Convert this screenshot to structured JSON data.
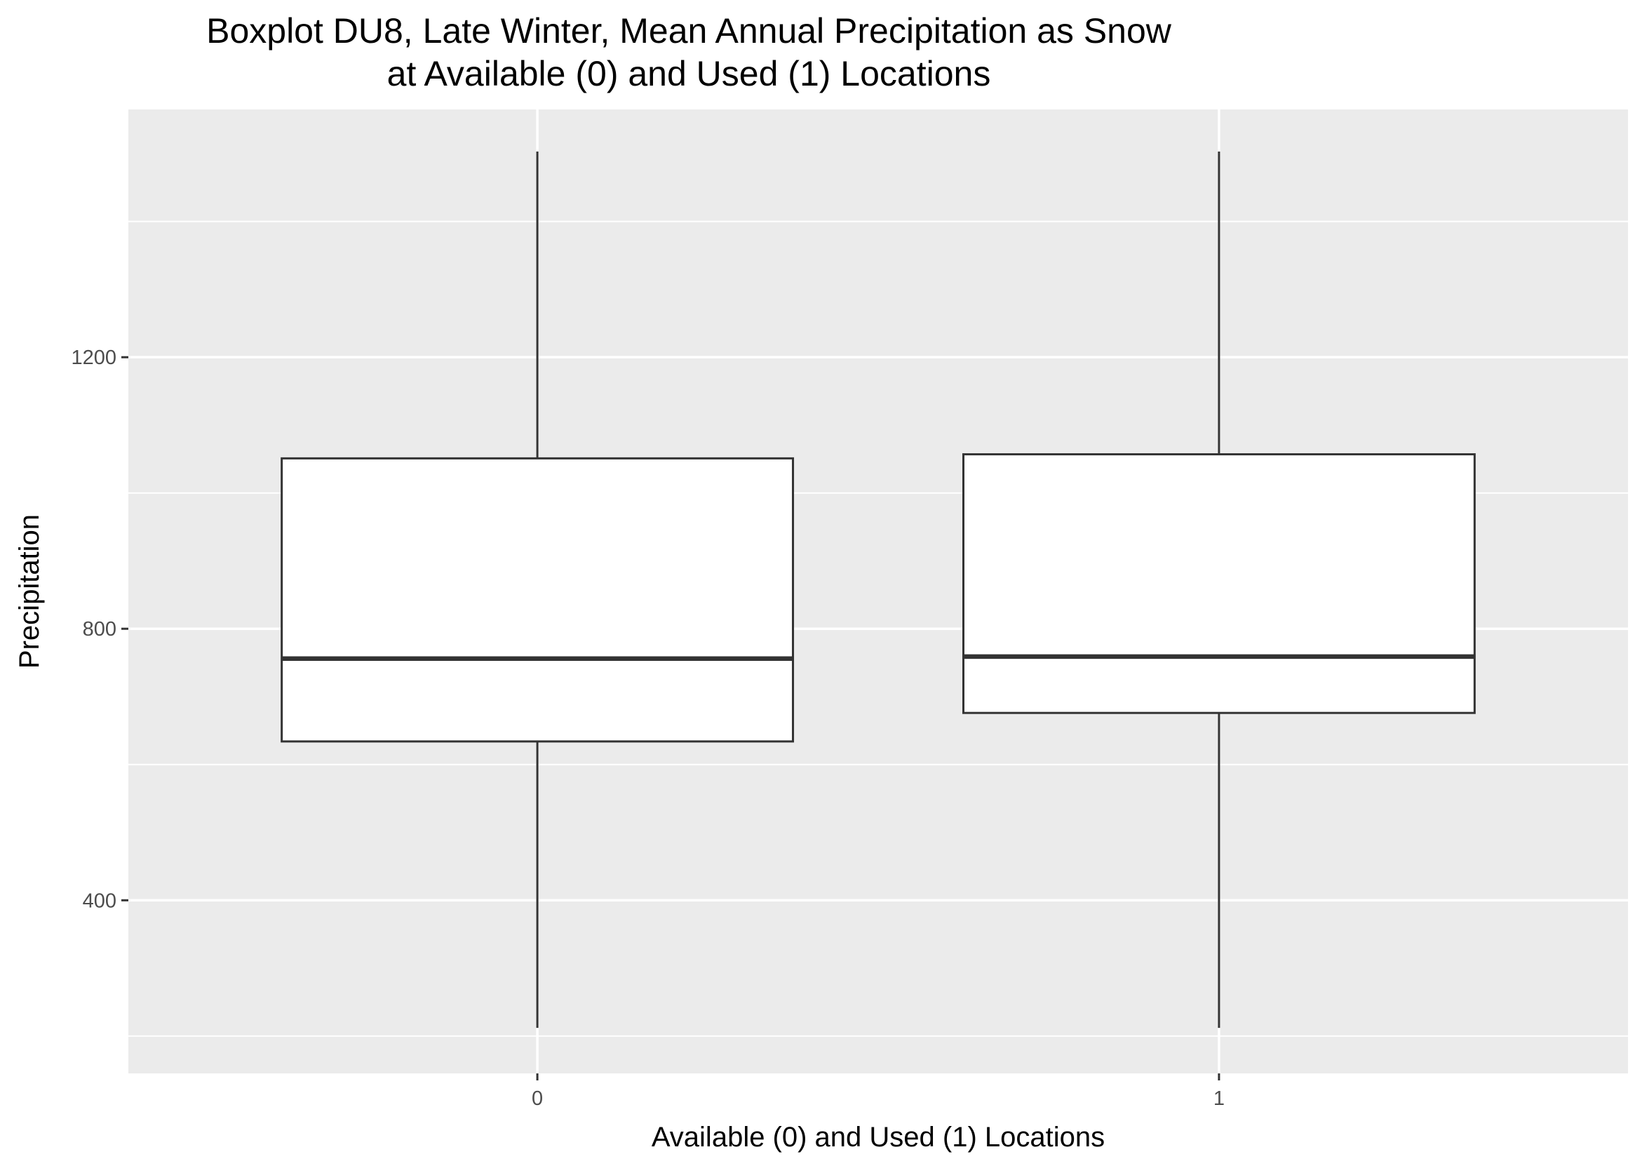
{
  "chart_data": {
    "type": "boxplot",
    "title": "Boxplot DU8, Late Winter, Mean Annual Precipitation as Snow",
    "subtitle": "at Available (0) and Used (1) Locations",
    "xlabel": "Available (0) and Used (1) Locations",
    "ylabel": "Precipitation",
    "categories": [
      "0",
      "1"
    ],
    "ylim": [
      145,
      1565
    ],
    "y_ticks": [
      400,
      800,
      1200
    ],
    "y_tick_labels": [
      "400",
      "800",
      "1200"
    ],
    "y_minor_ticks": [
      200,
      600,
      1000,
      1400
    ],
    "grid": true,
    "panel_background": "#ebebeb",
    "grid_color": "#ffffff",
    "box_fill": "#ffffff",
    "box_stroke": "#333333",
    "boxes": [
      {
        "category": "0",
        "whisker_low": 212,
        "q1": 634,
        "median": 756,
        "q3": 1051,
        "whisker_high": 1503
      },
      {
        "category": "1",
        "whisker_low": 212,
        "q1": 676,
        "median": 759,
        "q3": 1057,
        "whisker_high": 1503
      }
    ]
  }
}
